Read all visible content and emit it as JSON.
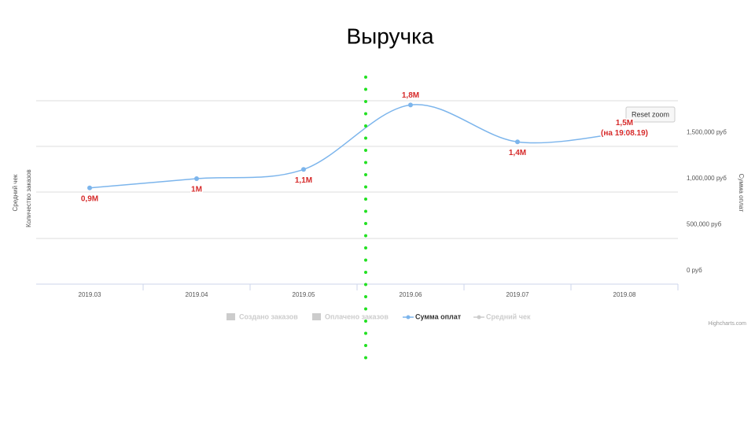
{
  "chart_data": {
    "type": "line",
    "title": "Выручка",
    "categories": [
      "2019.03",
      "2019.04",
      "2019.05",
      "2019.06",
      "2019.07",
      "2019.08"
    ],
    "series": [
      {
        "name": "Сумма оплат",
        "color": "#7cb5ec",
        "axis": "y2",
        "values": [
          900000,
          1000000,
          1100000,
          1800000,
          1400000,
          1500000
        ],
        "value_labels": [
          "0,9M",
          "1M",
          "1,1M",
          "1,8M",
          "1,4M",
          "1,5M"
        ]
      }
    ],
    "annotation": "(на 19.08.19)",
    "y_axis_titles": [
      "Средний чек",
      "Количество заказов"
    ],
    "y2_axis_title": "Сумма оплат",
    "y2lim": [
      -145000,
      1846000
    ],
    "y2ticks": [
      {
        "value": 0,
        "label": "0 руб"
      },
      {
        "value": 500000,
        "label": "500,000 руб"
      },
      {
        "value": 1000000,
        "label": "1,000,000 руб"
      },
      {
        "value": 1500000,
        "label": "1,500,000 руб"
      }
    ],
    "legend": [
      "Создано заказов",
      "Оплачено заказов",
      "Сумма оплат",
      "Средний чек"
    ],
    "reset_button": "Reset zoom",
    "credits": "Highcharts.com"
  }
}
